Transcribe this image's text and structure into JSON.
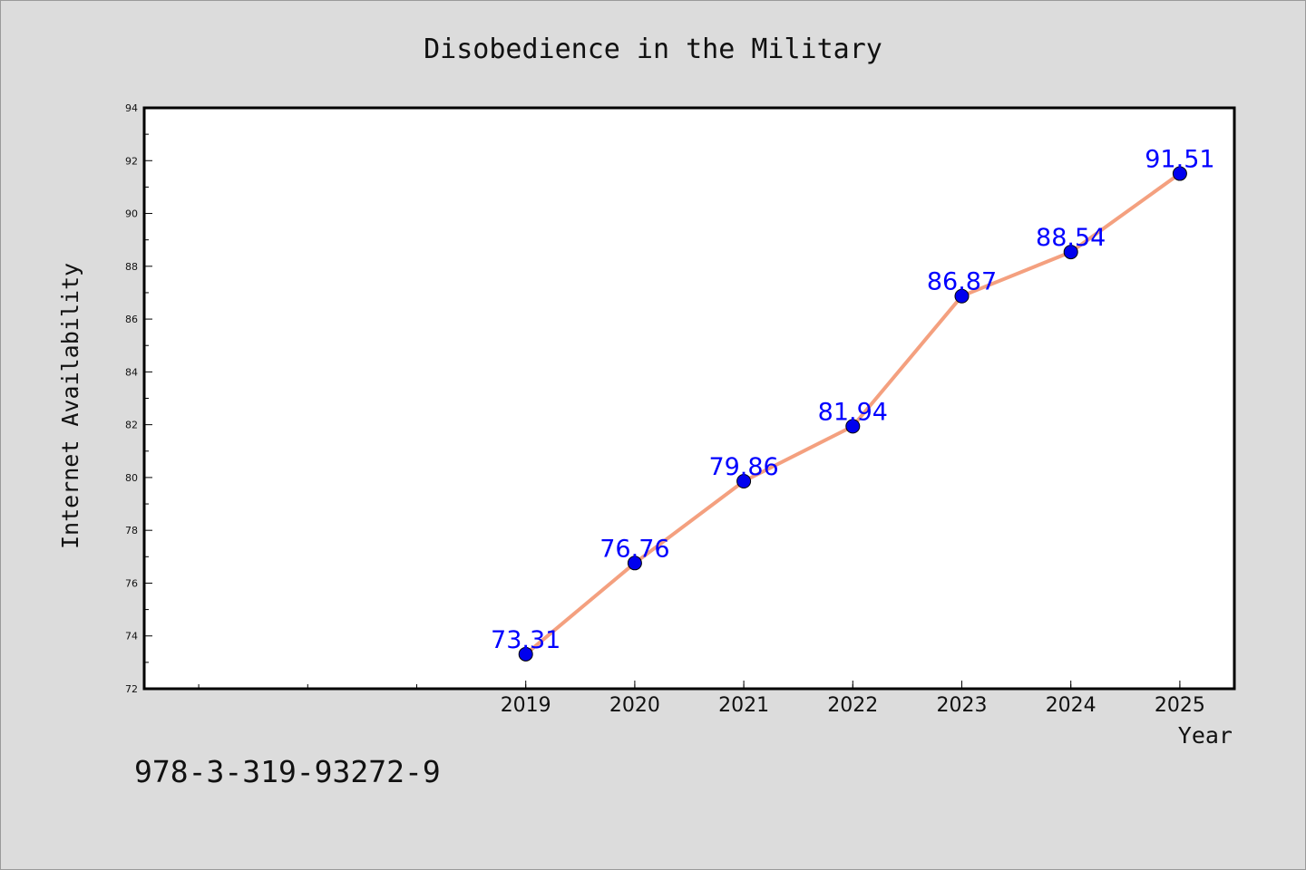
{
  "chart_data": {
    "type": "line",
    "title": "Disobedience in the Military",
    "xlabel": "Year",
    "ylabel": "Internet Availability",
    "categories": [
      "2019",
      "2020",
      "2021",
      "2022",
      "2023",
      "2024",
      "2025"
    ],
    "values": [
      73.31,
      76.76,
      79.86,
      81.94,
      86.87,
      88.54,
      91.51
    ],
    "value_labels": [
      "73.31",
      "76.76",
      "79.86",
      "81.94",
      "86.87",
      "88.54",
      "91.51"
    ],
    "x_range": [
      2015.5,
      2025.5
    ],
    "ylim": [
      72,
      94
    ],
    "y_ticks": [
      "72",
      "74",
      "76",
      "78",
      "80",
      "82",
      "84",
      "86",
      "88",
      "90",
      "92",
      "94"
    ],
    "grid": false,
    "legend": "none",
    "colors": {
      "line": "#f4a07f",
      "marker": "#0000ee",
      "data_label": "#0000ff",
      "plot_background": "#ffffff",
      "figure_background": "#dcdcdc"
    }
  },
  "footer": {
    "isbn": "978-3-319-93272-9"
  }
}
